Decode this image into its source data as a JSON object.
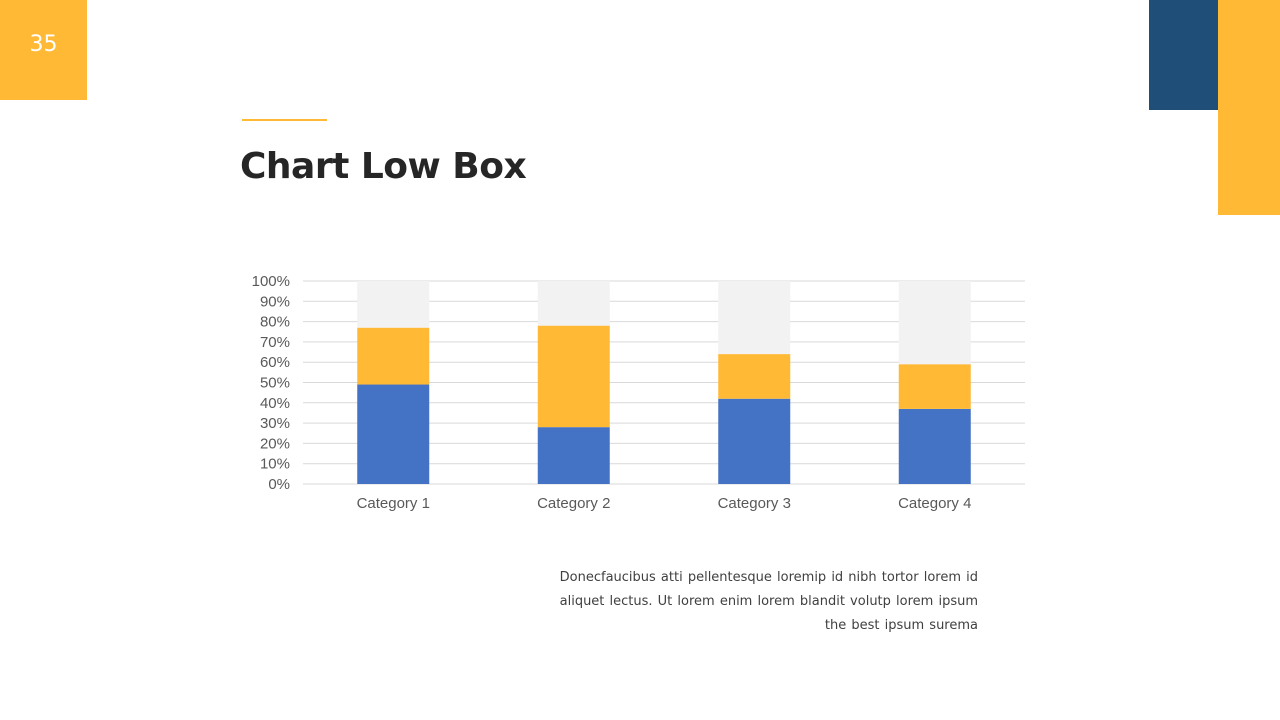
{
  "slide": {
    "page_number": "35",
    "title": "Chart Low Box",
    "body_lines": [
      "Donecfaucibus  atti pellentesque  loremip  id nibh tortor lorem id",
      "aliquet lectus. Ut lorem enim lorem blandit volutp lorem ipsum",
      "the best ipsum surema"
    ]
  },
  "colors": {
    "accent_yellow": "#FFB935",
    "accent_navy": "#1F4E79",
    "series_blue": "#4472C4",
    "series_yellow": "#FFB935",
    "series_gray": "#F2F2F2"
  },
  "chart_data": {
    "type": "bar",
    "stacked": "percent",
    "categories": [
      "Category 1",
      "Category 2",
      "Category 3",
      "Category 4"
    ],
    "series": [
      {
        "values": [
          0.49,
          0.28,
          0.42,
          0.37
        ],
        "color": "#4472C4"
      },
      {
        "values": [
          0.28,
          0.5,
          0.22,
          0.22
        ],
        "color": "#FFB935"
      },
      {
        "values": [
          0.23,
          0.22,
          0.36,
          0.41
        ],
        "color": "#F2F2F2"
      }
    ],
    "ylim": [
      0,
      1
    ],
    "yticks": [
      "0%",
      "10%",
      "20%",
      "30%",
      "40%",
      "50%",
      "60%",
      "70%",
      "80%",
      "90%",
      "100%"
    ],
    "grid": true,
    "legend": "none"
  }
}
